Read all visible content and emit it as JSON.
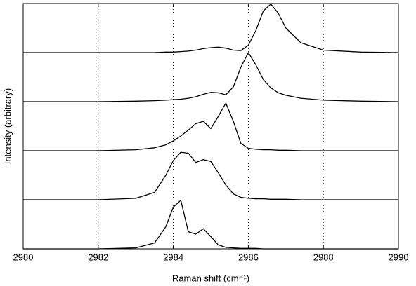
{
  "chart_data": {
    "type": "line",
    "xlabel": "Raman shift (cm⁻¹)",
    "ylabel": "Intensity (arbitrary)",
    "x": [
      2980,
      2982,
      2983,
      2983.5,
      2983.8,
      2984,
      2984.2,
      2984.4,
      2984.6,
      2984.8,
      2985,
      2985.2,
      2985.4,
      2985.6,
      2985.8,
      2986,
      2986.2,
      2986.4,
      2986.6,
      2986.8,
      2987,
      2987.4,
      2988,
      2989,
      2990
    ],
    "series": [
      {
        "color": "#000000",
        "values": [
          0,
          0,
          0.02,
          0.12,
          0.45,
          0.85,
          0.99,
          0.35,
          0.3,
          0.41,
          0.25,
          0.08,
          0.03,
          0.02,
          0.01,
          0.01,
          0.01,
          0,
          0,
          0,
          0,
          0,
          0,
          0,
          0
        ]
      },
      {
        "color": "#000000",
        "values": [
          1,
          1,
          1.03,
          1.15,
          1.5,
          1.8,
          1.97,
          1.95,
          1.76,
          1.82,
          1.78,
          1.55,
          1.3,
          1.12,
          1.05,
          1.03,
          1.02,
          1.02,
          1.01,
          1.01,
          1.01,
          1,
          1,
          1,
          1
        ]
      },
      {
        "color": "#000000",
        "values": [
          2,
          2,
          2.02,
          2.06,
          2.12,
          2.2,
          2.3,
          2.42,
          2.55,
          2.6,
          2.45,
          2.7,
          2.97,
          2.6,
          2.15,
          2.05,
          2.03,
          2.02,
          2.02,
          2.01,
          2.01,
          2,
          2,
          2,
          2
        ]
      },
      {
        "color": "#000000",
        "values": [
          3,
          3,
          3.01,
          3.02,
          3.03,
          3.04,
          3.05,
          3.07,
          3.1,
          3.15,
          3.19,
          3.18,
          3.14,
          3.3,
          3.7,
          4.0,
          3.75,
          3.45,
          3.28,
          3.18,
          3.13,
          3.07,
          3.03,
          3.01,
          3
        ]
      },
      {
        "color": "#000000",
        "values": [
          4,
          4,
          4,
          4,
          4.01,
          4.01,
          4.02,
          4.03,
          4.05,
          4.08,
          4.1,
          4.11,
          4.09,
          4.05,
          4.04,
          4.15,
          4.45,
          4.85,
          4.99,
          4.8,
          4.5,
          4.2,
          4.05,
          4.01,
          4
        ]
      }
    ],
    "xlim": [
      2980,
      2990
    ],
    "xticks": [
      2980,
      2982,
      2984,
      2986,
      2988,
      2990
    ],
    "ylim": [
      0,
      5
    ],
    "grid": true
  }
}
